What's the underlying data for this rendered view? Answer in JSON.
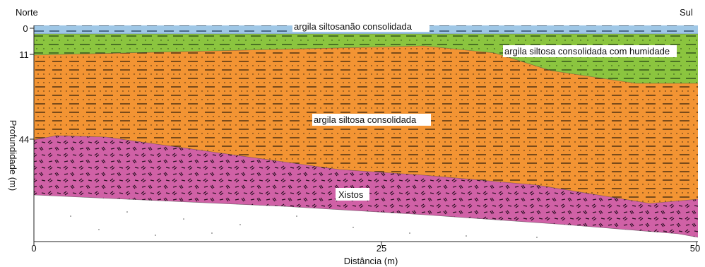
{
  "diagram": {
    "left_label": "Norte",
    "right_label": "Sul",
    "x_axis": {
      "title": "Distância (m)",
      "ticks": [
        "0",
        "25",
        "50"
      ]
    },
    "y_axis": {
      "title": "Profundidade (m)",
      "ticks": [
        "0",
        "11",
        "44"
      ]
    },
    "layers": [
      {
        "label": "argila siltosanão consolidada",
        "color": "#9fc7e6"
      },
      {
        "label": "argila siltosa consolidada com humidade",
        "color": "#8bc53f"
      },
      {
        "label": "argila siltosa consolidada",
        "color": "#f39433"
      },
      {
        "label": "Xistos",
        "color": "#d061a6"
      }
    ]
  }
}
